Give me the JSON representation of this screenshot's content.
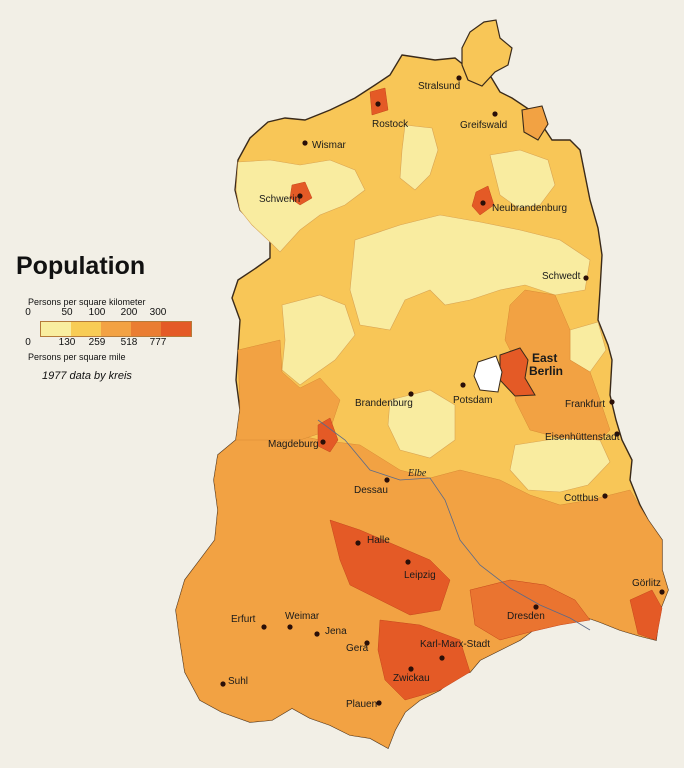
{
  "legend": {
    "title": "Population",
    "km_label": "Persons per square kilometer",
    "km_ticks": [
      "0",
      "50",
      "100",
      "200",
      "300"
    ],
    "mi_ticks": [
      "0",
      "130",
      "259",
      "518",
      "777"
    ],
    "mi_label": "Persons per square mile",
    "note": "1977 data by kreis",
    "colors": [
      "#f9eea0",
      "#f8cc55",
      "#f3a243",
      "#ea7d32",
      "#e45a26"
    ]
  },
  "cities": {
    "stralsund": "Stralsund",
    "rostock": "Rostock",
    "greifswald": "Greifswald",
    "wismar": "Wismar",
    "schwerin": "Schwerin",
    "neubrandenburg": "Neubrandenburg",
    "schwedt": "Schwedt",
    "east_berlin_1": "East",
    "east_berlin_2": "Berlin",
    "potsdam": "Potsdam",
    "brandenburg": "Brandenburg",
    "frankfurt": "Frankfurt",
    "eisenhuettenstadt": "Eisenhüttenstadt",
    "magdeburg": "Magdeburg",
    "dessau": "Dessau",
    "cottbus": "Cottbus",
    "halle": "Halle",
    "leipzig": "Leipzig",
    "dresden": "Dresden",
    "goerlitz": "Görlitz",
    "erfurt": "Erfurt",
    "weimar": "Weimar",
    "jena": "Jena",
    "gera": "Gera",
    "karl_marx_stadt": "Karl-Marx-Stadt",
    "zwickau": "Zwickau",
    "suhl": "Suhl",
    "plauen": "Plauen"
  },
  "rivers": {
    "elbe": "Elbe"
  }
}
